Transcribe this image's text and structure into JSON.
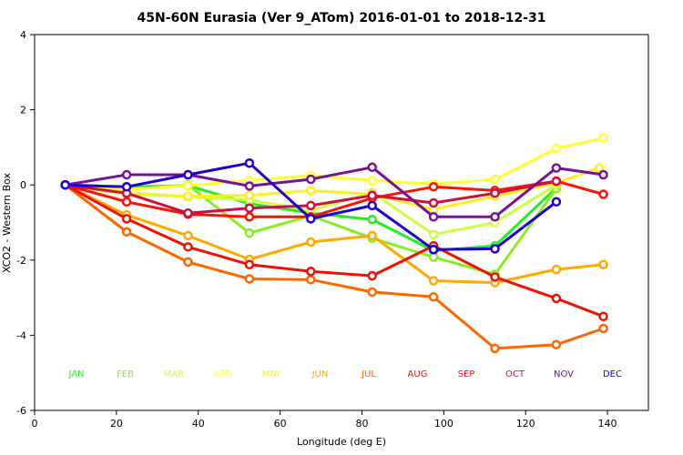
{
  "chart_data": {
    "type": "line",
    "title": "45N-60N Eurasia (Ver 9_ATom)   2016-01-01 to 2018-12-31",
    "xlabel": "Longitude (deg E)",
    "ylabel": "XCO2 - Western Box",
    "xlim": [
      0,
      150
    ],
    "ylim": [
      -6,
      4
    ],
    "xticks": [
      0,
      20,
      40,
      60,
      80,
      100,
      120,
      140
    ],
    "yticks": [
      -6,
      -4,
      -2,
      0,
      2,
      4
    ],
    "grid": false,
    "legend_placement": "bottom-inside",
    "series": [
      {
        "name": "JAN",
        "color": "#22ee22",
        "x": [
          7.5,
          22.5,
          37.5,
          52.5,
          67.5,
          82.5,
          97.5,
          112.5,
          127.5
        ],
        "y": [
          0.0,
          -0.05,
          -0.02,
          -0.5,
          -0.75,
          -0.92,
          -1.75,
          -1.62,
          -0.08
        ]
      },
      {
        "name": "FEB",
        "color": "#88ee22",
        "x": [
          7.5,
          22.5,
          37.5,
          52.5,
          67.5,
          82.5,
          97.5,
          112.5,
          127.5
        ],
        "y": [
          0.0,
          -0.12,
          0.0,
          -1.28,
          -0.82,
          -1.42,
          -1.92,
          -2.38,
          -0.1
        ]
      },
      {
        "name": "MAR",
        "color": "#ccff44",
        "x": [
          7.5,
          22.5,
          37.5,
          52.5,
          67.5,
          82.5,
          97.5,
          112.5,
          127.5
        ],
        "y": [
          0.0,
          -0.2,
          -0.32,
          -0.4,
          -0.68,
          -0.2,
          -1.32,
          -1.0,
          0.0
        ]
      },
      {
        "name": "APR",
        "color": "#ffff33",
        "x": [
          7.5,
          22.5,
          37.5,
          52.5,
          67.5,
          82.5,
          97.5,
          112.5,
          127.5,
          139
        ],
        "y": [
          0.0,
          -0.12,
          -0.02,
          0.12,
          0.25,
          0.12,
          0.02,
          0.15,
          0.97,
          1.25
        ]
      },
      {
        "name": "MAY",
        "color": "#ffee22",
        "x": [
          7.5,
          22.5,
          37.5,
          52.5,
          67.5,
          82.5,
          97.5,
          112.5,
          127.5,
          138
        ],
        "y": [
          0.0,
          -0.25,
          -0.3,
          -0.28,
          -0.15,
          -0.25,
          -0.65,
          -0.3,
          0.05,
          0.45
        ]
      },
      {
        "name": "JUN",
        "color": "#ffaa00",
        "x": [
          7.5,
          22.5,
          37.5,
          52.5,
          67.5,
          82.5,
          97.5,
          112.5,
          127.5,
          139
        ],
        "y": [
          0.0,
          -0.8,
          -1.35,
          -1.98,
          -1.52,
          -1.35,
          -2.55,
          -2.6,
          -2.25,
          -2.12
        ]
      },
      {
        "name": "JUL",
        "color": "#ff6600",
        "x": [
          7.5,
          22.5,
          37.5,
          52.5,
          67.5,
          82.5,
          97.5,
          112.5,
          127.5,
          139
        ],
        "y": [
          0.0,
          -1.25,
          -2.05,
          -2.5,
          -2.52,
          -2.85,
          -2.98,
          -4.35,
          -4.25,
          -3.82
        ]
      },
      {
        "name": "AUG",
        "color": "#ee1100",
        "x": [
          7.5,
          22.5,
          37.5,
          52.5,
          67.5,
          82.5,
          97.5,
          112.5,
          127.5,
          139
        ],
        "y": [
          0.0,
          -0.9,
          -1.65,
          -2.12,
          -2.3,
          -2.42,
          -1.62,
          -2.45,
          -3.02,
          -3.5
        ]
      },
      {
        "name": "SEP",
        "color": "#ff1100",
        "x": [
          7.5,
          22.5,
          37.5,
          52.5,
          67.5,
          82.5,
          97.5,
          112.5,
          127.5,
          139
        ],
        "y": [
          0.0,
          -0.45,
          -0.78,
          -0.85,
          -0.85,
          -0.35,
          -0.05,
          -0.15,
          0.1,
          -0.25
        ]
      },
      {
        "name": "OCT",
        "color": "#cc1144",
        "x": [
          7.5,
          22.5,
          37.5,
          52.5,
          67.5,
          82.5,
          97.5,
          112.5,
          127.5
        ],
        "y": [
          0.0,
          -0.22,
          -0.75,
          -0.62,
          -0.55,
          -0.28,
          -0.48,
          -0.22,
          0.1
        ]
      },
      {
        "name": "NOV",
        "color": "#771199",
        "x": [
          7.5,
          22.5,
          37.5,
          52.5,
          67.5,
          82.5,
          97.5,
          112.5,
          127.5,
          139
        ],
        "y": [
          0.0,
          0.27,
          0.27,
          -0.03,
          0.15,
          0.47,
          -0.85,
          -0.85,
          0.45,
          0.27
        ]
      },
      {
        "name": "DEC",
        "color": "#2200cc",
        "x": [
          7.5,
          22.5,
          37.5,
          52.5,
          67.5,
          82.5,
          97.5,
          112.5,
          127.5
        ],
        "y": [
          0.0,
          -0.05,
          0.27,
          0.58,
          -0.9,
          -0.55,
          -1.72,
          -1.7,
          -0.45
        ]
      }
    ]
  }
}
